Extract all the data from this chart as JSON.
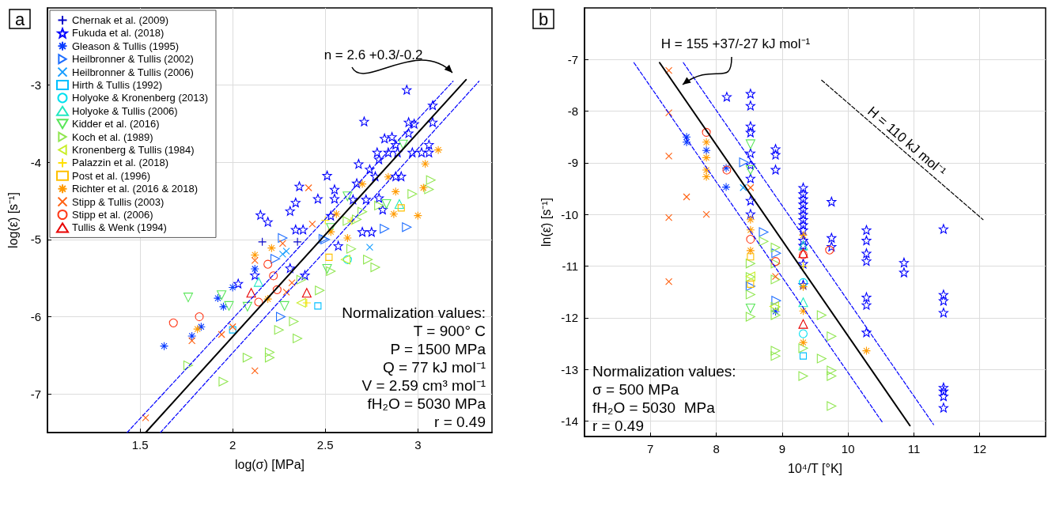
{
  "chart_data": [
    {
      "type": "scatter",
      "title": "a",
      "xlabel": "log(σ) [MPa]",
      "ylabel": "log(ε̇) [s⁻¹]",
      "xlim": [
        1,
        3.4
      ],
      "xticks": [
        1.5,
        2,
        2.5,
        3
      ],
      "ylim": [
        -7.5,
        -2
      ],
      "yticks": [
        -7,
        -6,
        -5,
        -4,
        -3
      ],
      "grid": true,
      "legend": "top left",
      "annotations": [
        "n = 2.6 +0.3/-0.2",
        "Normalization values:",
        "T = 900° C",
        "P = 1500 MPa",
        "Q = 77 kJ mol⁻¹",
        "V = 2.59 cm³ mol⁻¹",
        "fH₂O = 5030 MPa",
        "r = 0.49"
      ],
      "series": [
        {
          "name": "Chernak et al. (2009)",
          "color": "#0000c8",
          "marker": "plus",
          "x": [
            2.16,
            2.35
          ],
          "values": [
            -5.03,
            -5.03
          ]
        },
        {
          "name": "Fukuda et al. (2018)",
          "color": "#0000ff",
          "marker": "star",
          "x": [
            2.94,
            3.08,
            2.71,
            2.95,
            2.98,
            3.08,
            2.95,
            2.82,
            2.86,
            2.88,
            2.78,
            2.84,
            2.89,
            2.97,
            3.02,
            3.06,
            3.06,
            2.79,
            2.68,
            2.74,
            2.77,
            2.88,
            2.91,
            2.51,
            2.36,
            2.55,
            2.67,
            2.46,
            2.55,
            2.65,
            2.72,
            2.79,
            2.34,
            2.31,
            2.81,
            2.53,
            2.15,
            2.19,
            2.34,
            2.38,
            2.7,
            2.75,
            2.57,
            2.31,
            2.12,
            2.39,
            2.03
          ],
          "values": [
            -3.06,
            -3.26,
            -3.47,
            -3.48,
            -3.5,
            -3.48,
            -3.62,
            -3.69,
            -3.67,
            -3.77,
            -3.87,
            -3.87,
            -3.87,
            -3.87,
            -3.87,
            -3.87,
            -3.77,
            -3.96,
            -4.02,
            -4.09,
            -4.18,
            -4.18,
            -4.18,
            -4.17,
            -4.31,
            -4.35,
            -4.27,
            -4.47,
            -4.47,
            -4.48,
            -4.48,
            -4.46,
            -4.52,
            -4.63,
            -4.61,
            -4.69,
            -4.68,
            -4.77,
            -4.87,
            -4.87,
            -4.9,
            -4.9,
            -5.08,
            -5.37,
            -5.46,
            -5.46,
            -5.57
          ]
        },
        {
          "name": "Gleason & Tullis (1995)",
          "color": "#0a3cff",
          "x": [
            2.12,
            2.0,
            1.92,
            1.95,
            1.83,
            1.78,
            1.63
          ],
          "values": [
            -5.38,
            -5.62,
            -5.76,
            -5.87,
            -6.13,
            -6.25,
            -6.38
          ]
        },
        {
          "name": "Heilbronner & Tullis (2002)",
          "color": "#1e6eff",
          "marker": "triangle-right",
          "x": [
            2.82,
            2.49,
            2.27,
            2.23,
            2.26,
            2.5,
            2.94
          ],
          "values": [
            -4.86,
            -4.99,
            -4.98,
            -5.25,
            -6.0,
            -5.0,
            -4.84
          ]
        },
        {
          "name": "Heilbronner & Tullis (2006)",
          "color": "#149cff",
          "marker": "cross",
          "x": [
            2.27,
            2.29,
            2.74
          ],
          "values": [
            -5.19,
            -5.15,
            -5.1
          ]
        },
        {
          "name": "Hirth & Tullis (1992)",
          "color": "#00c0ff",
          "marker": "square",
          "x": [
            2.0,
            2.46
          ],
          "values": [
            -6.17,
            -5.86
          ]
        },
        {
          "name": "Holyoke & Kronenberg (2013)",
          "color": "#00e0f0",
          "marker": "circle",
          "x": [
            2.62
          ],
          "values": [
            -5.26
          ]
        },
        {
          "name": "Holyoke & Tullis (2006)",
          "color": "#20e8c0",
          "marker": "triangle",
          "x": [
            2.14,
            2.9
          ],
          "values": [
            -5.55,
            -4.54
          ]
        },
        {
          "name": "Kidder et al. (2016)",
          "color": "#5ae65a",
          "marker": "triangle-down",
          "x": [
            1.76,
            1.94,
            1.98,
            2.08,
            2.28,
            2.51,
            2.62,
            2.83,
            2.92,
            2.53
          ],
          "values": [
            -5.75,
            -5.72,
            -5.86,
            -5.87,
            -5.86,
            -5.38,
            -4.44,
            -4.54,
            -3.77,
            -4.85
          ]
        },
        {
          "name": "Koch et al. (1989)",
          "color": "#90e650",
          "marker": "triangle-right",
          "x": [
            3.07,
            3.06,
            2.97,
            2.79,
            2.7,
            2.62,
            2.67,
            2.64,
            2.73,
            2.77,
            2.53,
            2.37,
            2.47,
            2.33,
            2.25,
            2.35,
            2.2,
            2.2,
            2.08,
            1.76,
            1.95
          ],
          "values": [
            -4.23,
            -4.35,
            -4.41,
            -4.56,
            -4.64,
            -4.76,
            -4.74,
            -5.12,
            -5.26,
            -5.36,
            -5.41,
            -5.52,
            -5.66,
            -6.06,
            -6.17,
            -6.28,
            -6.46,
            -6.53,
            -6.53,
            -6.63,
            -6.84
          ]
        },
        {
          "name": "Kronenberg & Tullis (1984)",
          "color": "#c8ee28",
          "marker": "triangle-left",
          "x": [
            2.61,
            2.37
          ],
          "values": [
            -5.26,
            -5.82
          ]
        },
        {
          "name": "Palazzin et al. (2018)",
          "color": "#ffe000",
          "marker": "plus",
          "x": [
            2.5,
            2.64,
            2.4
          ],
          "values": [
            -4.75,
            -4.76,
            -5.82
          ]
        },
        {
          "name": "Post et al. (1996)",
          "color": "#ffc000",
          "marker": "square",
          "x": [
            2.91,
            2.52
          ],
          "values": [
            -4.59,
            -5.23
          ]
        },
        {
          "name": "Richter et al. (2016 & 2018)",
          "color": "#ff9a00",
          "x": [
            3.11,
            3.04,
            2.84,
            3.03,
            2.7,
            2.88,
            2.87,
            3.0,
            2.56,
            2.62,
            2.53,
            2.21,
            2.12,
            1.81,
            2.19
          ],
          "values": [
            -3.84,
            -4.02,
            -4.19,
            -4.33,
            -4.28,
            -4.38,
            -4.67,
            -4.69,
            -4.67,
            -4.98,
            -4.9,
            -5.11,
            -5.2,
            -6.16,
            -5.77
          ]
        },
        {
          "name": "Stipp & Tullis (2003)",
          "color": "#ff6010",
          "marker": "cross",
          "x": [
            2.41,
            2.43,
            2.12,
            2.27,
            2.32,
            2.29,
            1.78,
            1.94,
            2.0,
            2.12,
            1.53
          ],
          "values": [
            -4.33,
            -4.8,
            -5.27,
            -5.05,
            -5.56,
            -5.68,
            -6.31,
            -6.23,
            -6.13,
            -6.7,
            -7.31
          ]
        },
        {
          "name": "Stipp et al. (2006)",
          "color": "#ff3a1a",
          "marker": "circle",
          "x": [
            2.19,
            2.22,
            2.24,
            2.14,
            1.82,
            1.68
          ],
          "values": [
            -5.32,
            -5.47,
            -5.65,
            -5.81,
            -6.0,
            -6.08
          ]
        },
        {
          "name": "Tullis & Wenk (1994)",
          "color": "#e80000",
          "marker": "triangle",
          "x": [
            2.1,
            2.4
          ],
          "values": [
            -5.69,
            -5.69
          ]
        },
        {
          "type": "line",
          "color": "#000000",
          "line_style": "solid",
          "x": [
            1.53,
            3.26
          ],
          "values": [
            -7.5,
            -2.93
          ]
        },
        {
          "type": "line",
          "color": "#0000ff",
          "line_style": "dashed",
          "x": [
            1.43,
            3.19
          ],
          "values": [
            -7.5,
            -2.95
          ]
        },
        {
          "type": "line",
          "color": "#0000ff",
          "line_style": "dashed",
          "x": [
            1.61,
            3.33
          ],
          "values": [
            -7.5,
            -2.95
          ]
        }
      ]
    },
    {
      "type": "scatter",
      "title": "b",
      "xlabel": "10⁴/T [°K]",
      "ylabel": "ln(ε̇) [s⁻¹]",
      "xlim": [
        6,
        13
      ],
      "xticks": [
        7,
        8,
        9,
        10,
        11,
        12
      ],
      "ylim": [
        -14.3,
        -6
      ],
      "yticks": [
        -14,
        -13,
        -12,
        -11,
        -10,
        -9,
        -8,
        -7
      ],
      "grid": true,
      "annotations": [
        "H = 155 +37/-27 kJ mol⁻¹",
        {
          "text": "H = 110 kJ mol⁻¹",
          "x": 10.8,
          "y": -8.72
        },
        "Normalization values:",
        "σ = 500 MPa",
        "fH₂O = 5030  MPa",
        "r = 0.49"
      ],
      "series": [
        {
          "color": "#0000ff",
          "marker": "star",
          "x": [
            8.52,
            8.52,
            8.52,
            8.52,
            8.52,
            8.52,
            8.52,
            8.52,
            8.52,
            8.16,
            8.9,
            8.9,
            8.9,
            9.32,
            9.32,
            9.32,
            9.32,
            9.32,
            9.32,
            9.32,
            9.32,
            9.32,
            9.32,
            9.32,
            9.32,
            9.32,
            9.75,
            9.75,
            9.75,
            10.28,
            10.28,
            10.28,
            10.28,
            10.28,
            10.28,
            10.28,
            10.85,
            10.85,
            11.45,
            11.45,
            11.45,
            11.45,
            11.45,
            11.45,
            11.45,
            11.45
          ],
          "values": [
            -7.66,
            -7.89,
            -8.29,
            -8.41,
            -8.81,
            -9.04,
            -9.3,
            -9.73,
            -9.99,
            -7.72,
            -8.73,
            -8.84,
            -9.13,
            -9.48,
            -9.6,
            -9.7,
            -9.8,
            -9.9,
            -10.0,
            -10.1,
            -10.2,
            -10.3,
            -10.5,
            -10.6,
            -10.95,
            -11.36,
            -9.75,
            -10.45,
            -10.62,
            -10.3,
            -10.5,
            -10.75,
            -10.9,
            -11.6,
            -11.75,
            -12.28,
            -10.93,
            -11.12,
            -10.28,
            -11.55,
            -11.67,
            -11.9,
            -13.35,
            -13.42,
            -13.52,
            -13.74
          ]
        },
        {
          "color": "#0a3cff",
          "x": [
            7.55,
            7.55,
            7.85,
            8.15,
            8.15,
            8.9
          ],
          "values": [
            -8.5,
            -8.6,
            -8.76,
            -9.47,
            -9.1,
            -11.88
          ]
        },
        {
          "color": "#1e6eff",
          "marker": "triangle-right",
          "x": [
            8.42,
            8.72,
            8.91,
            8.91,
            8.52
          ],
          "values": [
            -8.99,
            -10.34,
            -11.67,
            -10.75,
            -11.39
          ]
        },
        {
          "color": "#149cff",
          "marker": "cross",
          "x": [
            8.41
          ],
          "values": [
            -9.48
          ]
        },
        {
          "color": "#00c0ff",
          "marker": "square",
          "x": [
            9.32
          ],
          "values": [
            -12.74
          ]
        },
        {
          "color": "#00e0f0",
          "marker": "circle",
          "x": [
            9.32,
            9.32
          ],
          "values": [
            -12.31,
            -11.32
          ]
        },
        {
          "color": "#20e8c0",
          "marker": "triangle",
          "x": [
            9.32,
            9.32
          ],
          "values": [
            -11.7,
            -10.6
          ]
        },
        {
          "color": "#5ae65a",
          "marker": "triangle-down",
          "x": [
            8.52,
            8.52,
            8.52
          ],
          "values": [
            -8.64,
            -9.14,
            -11.82
          ]
        },
        {
          "color": "#90e650",
          "marker": "triangle-right",
          "x": [
            8.52,
            8.52,
            8.52,
            8.52,
            8.9,
            8.9,
            8.9,
            8.9,
            8.9,
            8.9,
            8.9,
            8.72,
            9.32,
            9.32,
            9.6,
            9.6,
            9.75,
            9.75,
            9.75,
            9.75
          ],
          "values": [
            -10.95,
            -11.21,
            -11.55,
            -11.98,
            -10.64,
            -10.95,
            -11.26,
            -11.79,
            -11.95,
            -12.64,
            -12.74,
            -10.52,
            -13.13,
            -12.59,
            -11.95,
            -12.79,
            -12.36,
            -13.02,
            -13.13,
            -13.71
          ]
        },
        {
          "color": "#c8ee28",
          "marker": "triangle-left",
          "x": [
            8.88,
            8.52
          ],
          "values": [
            -11.78,
            -11.2
          ]
        },
        {
          "color": "#ffe000",
          "marker": "plus",
          "x": [
            9.32
          ],
          "values": [
            -11.0
          ]
        },
        {
          "color": "#ffc000",
          "marker": "square",
          "x": [
            8.52,
            8.52
          ],
          "values": [
            -10.82,
            -11.35
          ]
        },
        {
          "color": "#ff9a00",
          "x": [
            7.85,
            7.85,
            7.85,
            7.85,
            8.52,
            8.52,
            8.52,
            9.32,
            9.32,
            9.32,
            9.32,
            10.28
          ],
          "values": [
            -8.6,
            -8.9,
            -9.14,
            -9.27,
            -10.1,
            -10.3,
            -10.7,
            -11.4,
            -11.87,
            -12.48,
            -10.4,
            -12.64
          ]
        },
        {
          "color": "#ff6010",
          "marker": "cross",
          "x": [
            7.28,
            7.28,
            7.28,
            7.28,
            7.55,
            7.85,
            7.28,
            8.9,
            8.52
          ],
          "values": [
            -7.21,
            -8.03,
            -8.87,
            -10.06,
            -9.66,
            -10.0,
            -11.3,
            -11.2,
            -9.48
          ]
        },
        {
          "color": "#ff3a1a",
          "marker": "circle",
          "x": [
            7.85,
            8.16,
            8.52,
            8.9,
            9.72,
            9.32
          ],
          "values": [
            -8.41,
            -9.14,
            -10.48,
            -10.91,
            -10.69,
            -10.78
          ]
        },
        {
          "color": "#e80000",
          "marker": "triangle",
          "x": [
            9.32,
            9.32
          ],
          "values": [
            -10.75,
            -12.12
          ]
        },
        {
          "type": "line",
          "color": "#000000",
          "line_style": "solid",
          "x": [
            7.14,
            10.94
          ],
          "values": [
            -7.06,
            -14.09
          ]
        },
        {
          "type": "line",
          "color": "#0000ff",
          "line_style": "dashed",
          "x": [
            6.75,
            10.53
          ],
          "values": [
            -7.06,
            -14.04
          ]
        },
        {
          "type": "line",
          "color": "#0000ff",
          "line_style": "dashed",
          "x": [
            7.5,
            11.3
          ],
          "values": [
            -7.06,
            -14.07
          ]
        },
        {
          "type": "line",
          "color": "#000000",
          "line_style": "dashed",
          "x": [
            9.6,
            12.05
          ],
          "values": [
            -7.4,
            -10.1
          ]
        }
      ]
    }
  ]
}
